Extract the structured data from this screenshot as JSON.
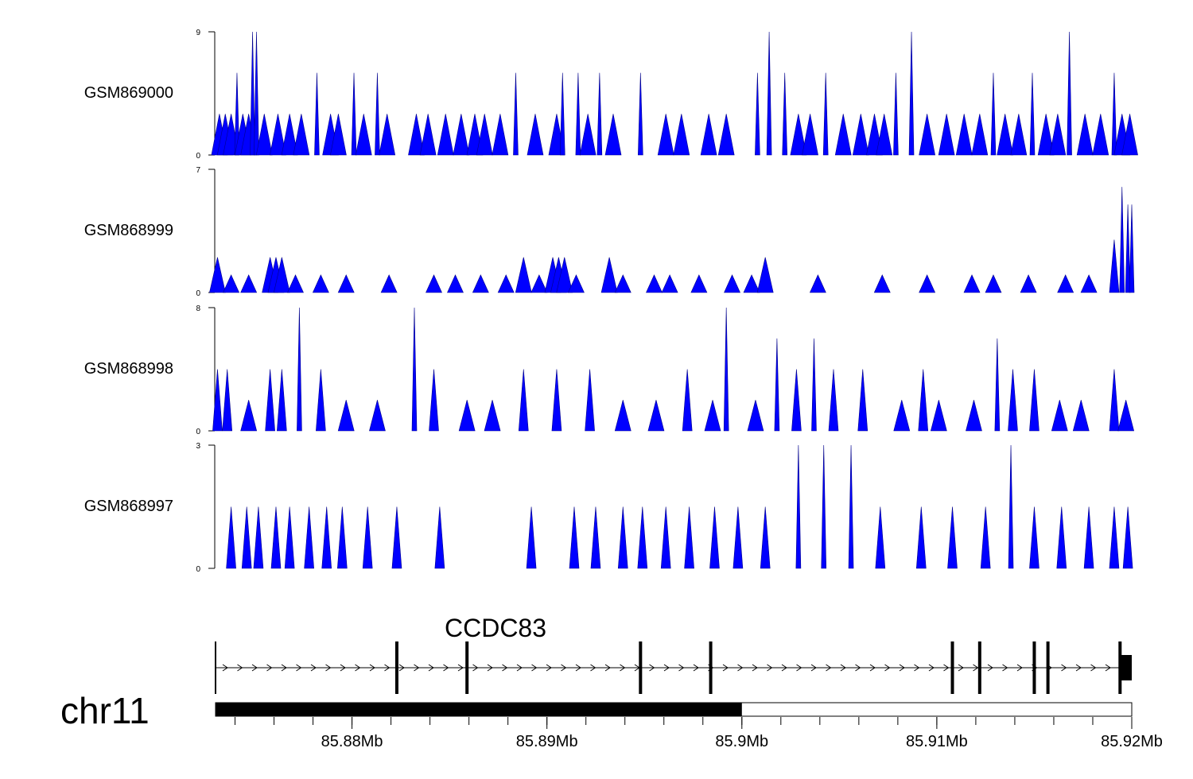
{
  "chart_data": {
    "type": "area",
    "title": "",
    "x_range": [
      85.873,
      85.92
    ],
    "x_unit": "Mb",
    "fill_color": "#0000ff",
    "tracks": [
      {
        "name": "GSM869000",
        "ymax": "9",
        "ymin": "0",
        "peaks": [
          [
            85.8732,
            3
          ],
          [
            85.8735,
            3
          ],
          [
            85.8738,
            3
          ],
          [
            85.8741,
            6
          ],
          [
            85.8744,
            3
          ],
          [
            85.8747,
            3
          ],
          [
            85.8749,
            9
          ],
          [
            85.8751,
            9
          ],
          [
            85.8755,
            3
          ],
          [
            85.8762,
            3
          ],
          [
            85.8768,
            3
          ],
          [
            85.8774,
            3
          ],
          [
            85.8782,
            6
          ],
          [
            85.8789,
            3
          ],
          [
            85.8793,
            3
          ],
          [
            85.8801,
            6
          ],
          [
            85.8806,
            3
          ],
          [
            85.8813,
            6
          ],
          [
            85.8818,
            3
          ],
          [
            85.8833,
            3
          ],
          [
            85.8839,
            3
          ],
          [
            85.8848,
            3
          ],
          [
            85.8856,
            3
          ],
          [
            85.8863,
            3
          ],
          [
            85.8868,
            3
          ],
          [
            85.8876,
            3
          ],
          [
            85.8884,
            6
          ],
          [
            85.8894,
            3
          ],
          [
            85.8905,
            3
          ],
          [
            85.8908,
            6
          ],
          [
            85.8916,
            6
          ],
          [
            85.8921,
            3
          ],
          [
            85.8927,
            6
          ],
          [
            85.8934,
            3
          ],
          [
            85.8948,
            6
          ],
          [
            85.8961,
            3
          ],
          [
            85.8969,
            3
          ],
          [
            85.8983,
            3
          ],
          [
            85.8992,
            3
          ],
          [
            85.9008,
            6
          ],
          [
            85.9014,
            9
          ],
          [
            85.9022,
            6
          ],
          [
            85.9029,
            3
          ],
          [
            85.9035,
            3
          ],
          [
            85.9043,
            6
          ],
          [
            85.9052,
            3
          ],
          [
            85.9061,
            3
          ],
          [
            85.9068,
            3
          ],
          [
            85.9073,
            3
          ],
          [
            85.9079,
            6
          ],
          [
            85.9087,
            9
          ],
          [
            85.9095,
            3
          ],
          [
            85.9105,
            3
          ],
          [
            85.9114,
            3
          ],
          [
            85.9122,
            3
          ],
          [
            85.9129,
            6
          ],
          [
            85.9135,
            3
          ],
          [
            85.9142,
            3
          ],
          [
            85.9149,
            6
          ],
          [
            85.9156,
            3
          ],
          [
            85.9162,
            3
          ],
          [
            85.9168,
            9
          ],
          [
            85.9176,
            3
          ],
          [
            85.9184,
            3
          ],
          [
            85.9191,
            6
          ],
          [
            85.9195,
            3
          ],
          [
            85.9199,
            3
          ]
        ]
      },
      {
        "name": "GSM868999",
        "ymax": "7",
        "ymin": "0",
        "peaks": [
          [
            85.8731,
            2
          ],
          [
            85.8738,
            1
          ],
          [
            85.8747,
            1
          ],
          [
            85.8758,
            2
          ],
          [
            85.8761,
            2
          ],
          [
            85.8764,
            2
          ],
          [
            85.8771,
            1
          ],
          [
            85.8784,
            1
          ],
          [
            85.8797,
            1
          ],
          [
            85.8819,
            1
          ],
          [
            85.8842,
            1
          ],
          [
            85.8853,
            1
          ],
          [
            85.8866,
            1
          ],
          [
            85.8879,
            1
          ],
          [
            85.8888,
            2
          ],
          [
            85.8896,
            1
          ],
          [
            85.8903,
            2
          ],
          [
            85.8906,
            2
          ],
          [
            85.8909,
            2
          ],
          [
            85.8915,
            1
          ],
          [
            85.8932,
            2
          ],
          [
            85.8939,
            1
          ],
          [
            85.8955,
            1
          ],
          [
            85.8963,
            1
          ],
          [
            85.8978,
            1
          ],
          [
            85.8995,
            1
          ],
          [
            85.9005,
            1
          ],
          [
            85.9012,
            2
          ],
          [
            85.9039,
            1
          ],
          [
            85.9072,
            1
          ],
          [
            85.9095,
            1
          ],
          [
            85.9118,
            1
          ],
          [
            85.9129,
            1
          ],
          [
            85.9147,
            1
          ],
          [
            85.9166,
            1
          ],
          [
            85.9178,
            1
          ],
          [
            85.9191,
            3
          ],
          [
            85.9195,
            6
          ],
          [
            85.9198,
            5
          ],
          [
            85.92,
            5
          ]
        ]
      },
      {
        "name": "GSM868998",
        "ymax": "8",
        "ymin": "0",
        "peaks": [
          [
            85.8731,
            4
          ],
          [
            85.8736,
            4
          ],
          [
            85.8747,
            2
          ],
          [
            85.8758,
            4
          ],
          [
            85.8764,
            4
          ],
          [
            85.8773,
            8
          ],
          [
            85.8784,
            4
          ],
          [
            85.8797,
            2
          ],
          [
            85.8813,
            2
          ],
          [
            85.8832,
            8
          ],
          [
            85.8842,
            4
          ],
          [
            85.8859,
            2
          ],
          [
            85.8872,
            2
          ],
          [
            85.8888,
            4
          ],
          [
            85.8905,
            4
          ],
          [
            85.8922,
            4
          ],
          [
            85.8939,
            2
          ],
          [
            85.8956,
            2
          ],
          [
            85.8972,
            4
          ],
          [
            85.8985,
            2
          ],
          [
            85.8992,
            8
          ],
          [
            85.9007,
            2
          ],
          [
            85.9018,
            6
          ],
          [
            85.9028,
            4
          ],
          [
            85.9037,
            6
          ],
          [
            85.9047,
            4
          ],
          [
            85.9062,
            4
          ],
          [
            85.9082,
            2
          ],
          [
            85.9093,
            4
          ],
          [
            85.9101,
            2
          ],
          [
            85.9119,
            2
          ],
          [
            85.9131,
            6
          ],
          [
            85.9139,
            4
          ],
          [
            85.915,
            4
          ],
          [
            85.9163,
            2
          ],
          [
            85.9174,
            2
          ],
          [
            85.9191,
            4
          ],
          [
            85.9197,
            2
          ]
        ]
      },
      {
        "name": "GSM868997",
        "ymax": "3",
        "ymin": "0",
        "peaks": [
          [
            85.8738,
            1.5
          ],
          [
            85.8746,
            1.5
          ],
          [
            85.8752,
            1.5
          ],
          [
            85.8761,
            1.5
          ],
          [
            85.8768,
            1.5
          ],
          [
            85.8778,
            1.5
          ],
          [
            85.8787,
            1.5
          ],
          [
            85.8795,
            1.5
          ],
          [
            85.8808,
            1.5
          ],
          [
            85.8823,
            1.5
          ],
          [
            85.8845,
            1.5
          ],
          [
            85.8892,
            1.5
          ],
          [
            85.8914,
            1.5
          ],
          [
            85.8925,
            1.5
          ],
          [
            85.8939,
            1.5
          ],
          [
            85.8949,
            1.5
          ],
          [
            85.8961,
            1.5
          ],
          [
            85.8973,
            1.5
          ],
          [
            85.8986,
            1.5
          ],
          [
            85.8998,
            1.5
          ],
          [
            85.9012,
            1.5
          ],
          [
            85.9029,
            3
          ],
          [
            85.9042,
            3
          ],
          [
            85.9056,
            3
          ],
          [
            85.9071,
            1.5
          ],
          [
            85.9092,
            1.5
          ],
          [
            85.9108,
            1.5
          ],
          [
            85.9125,
            1.5
          ],
          [
            85.9138,
            3
          ],
          [
            85.915,
            1.5
          ],
          [
            85.9164,
            1.5
          ],
          [
            85.9178,
            1.5
          ],
          [
            85.9191,
            1.5
          ],
          [
            85.9198,
            1.5
          ]
        ]
      }
    ],
    "gene": {
      "name": "CCDC83",
      "strand": "+",
      "start": 85.873,
      "end": 85.92,
      "exons": [
        85.873,
        85.8823,
        85.8859,
        85.8948,
        85.8984,
        85.9108,
        85.9122,
        85.915,
        85.9157,
        85.9194
      ]
    },
    "chromosome": "chr11",
    "ideogram_filled_range": [
      85.873,
      85.9
    ],
    "x_ticks": [
      {
        "value": 85.88,
        "label": "85.88Mb"
      },
      {
        "value": 85.89,
        "label": "85.89Mb"
      },
      {
        "value": 85.9,
        "label": "85.9Mb"
      },
      {
        "value": 85.91,
        "label": "85.91Mb"
      },
      {
        "value": 85.92,
        "label": "85.92Mb"
      }
    ]
  }
}
